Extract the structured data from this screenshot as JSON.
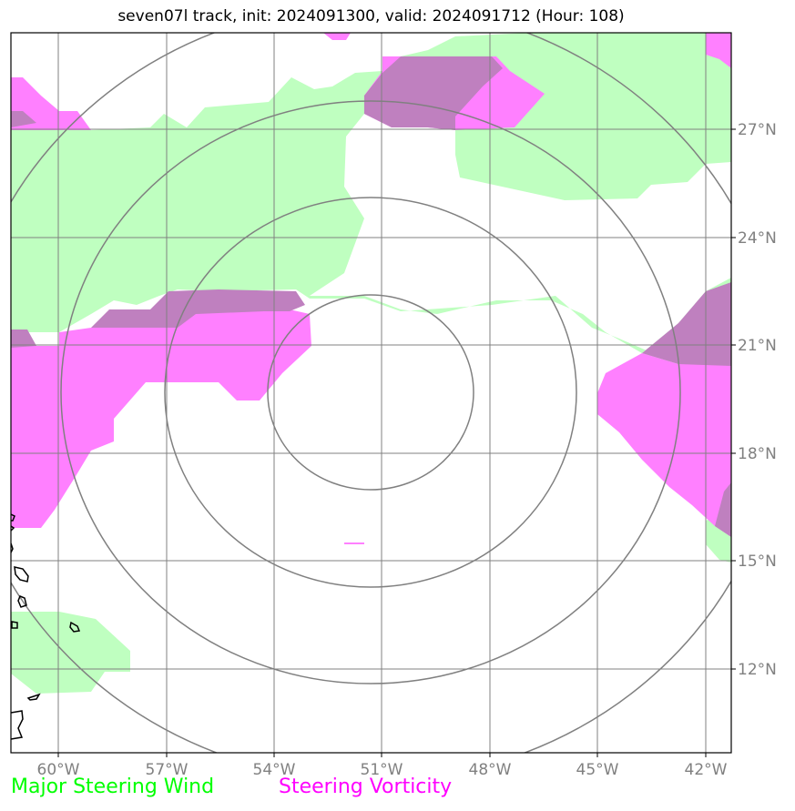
{
  "title": "seven07l track, init: 2024091300, valid: 2024091712 (Hour: 108)",
  "x_ticks": [
    "60°W",
    "57°W",
    "54°W",
    "51°W",
    "48°W",
    "45°W",
    "42°W"
  ],
  "y_ticks": [
    "27°N",
    "24°N",
    "21°N",
    "18°N",
    "15°N",
    "12°N"
  ],
  "legend": {
    "wind_label": "Major Steering Wind",
    "vorticity_label": "Steering Vorticity"
  },
  "colors": {
    "wind": "#bfffc0",
    "vorticity": "#ff80ff",
    "overlap": "#bf80bf",
    "wind_text": "#00ff00",
    "vorticity_text": "#ff00ff",
    "grid": "#808080",
    "rings": "#808080",
    "coastline": "#000000"
  }
}
